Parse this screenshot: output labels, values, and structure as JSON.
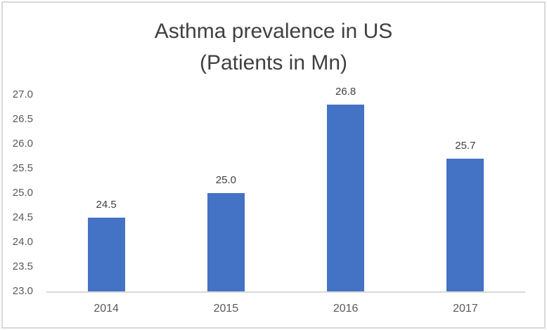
{
  "frame": {
    "border_color": "#d9d9d9",
    "background": "#ffffff"
  },
  "chart_data": {
    "type": "bar",
    "title": "Asthma prevalence in US (Patients in Mn)",
    "title_lines": [
      "Asthma prevalence in US",
      "(Patients in Mn)"
    ],
    "categories": [
      "2014",
      "2015",
      "2016",
      "2017"
    ],
    "values": [
      24.5,
      25.0,
      26.8,
      25.7
    ],
    "data_labels": [
      "24.5",
      "25.0",
      "26.8",
      "25.7"
    ],
    "xlabel": "",
    "ylabel": "",
    "ylim": [
      23.0,
      27.0
    ],
    "ytick_step": 0.5,
    "yticks": [
      "27.0",
      "26.5",
      "26.0",
      "25.5",
      "25.0",
      "24.5",
      "24.0",
      "23.5",
      "23.0"
    ],
    "grid": false,
    "legend_position": "none",
    "bar_color": "#4472c4",
    "axis_line_color": "#d9d9d9",
    "tick_label_color": "#595959",
    "data_label_color": "#404040",
    "title_color": "#404040"
  }
}
